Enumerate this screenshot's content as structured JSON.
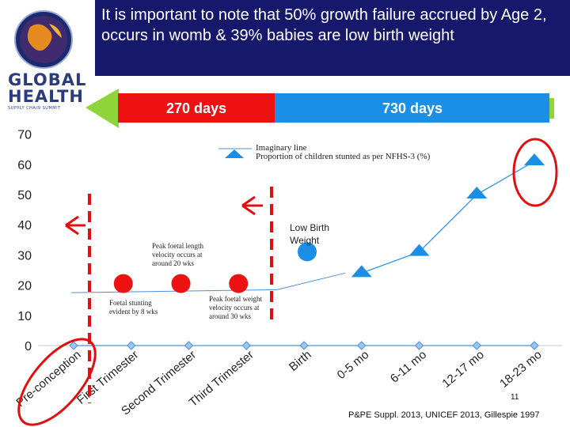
{
  "slide": {
    "title": "It is important to note that 50% growth failure accrued by Age 2, occurs in womb & 39% babies are low birth weight",
    "page_number": "11",
    "footnote": "P&PE Suppl. 2013, UNICEF 2013, Gillespie 1997"
  },
  "logo": {
    "line1": "GLOBAL",
    "line2": "HEALTH",
    "line3": "SUPPLY CHAIN SUMMIT"
  },
  "timeline": {
    "label_270": "270 days",
    "label_730": "730 days",
    "colors": {
      "red": "#ee1111",
      "blue": "#1b8ee6",
      "green": "#8ed43a"
    }
  },
  "chart_data": {
    "type": "line",
    "categories": [
      "Pre-conception",
      "First Trimester",
      "Second Trimester",
      "Third Trimester",
      "Birth",
      "0-5 mo",
      "6-11 mo",
      "12-17 mo",
      "18-23 mo"
    ],
    "ylim": [
      0,
      70
    ],
    "yticks": [
      0,
      10,
      20,
      30,
      40,
      50,
      60,
      70
    ],
    "grid": false,
    "legend_position": "top-right",
    "series": [
      {
        "name": "Imaginary line",
        "marker": "diamond",
        "color": "#4a90d9",
        "values": [
          0,
          0,
          0,
          0,
          0,
          0,
          0,
          0,
          0
        ]
      },
      {
        "name": "Proportion of children stunted as per NFHS-3 (%)",
        "marker": "triangle",
        "color": "#1b8ee6",
        "values": [
          null,
          null,
          null,
          null,
          null,
          24,
          31,
          50,
          61
        ]
      }
    ],
    "markers": [
      {
        "type": "red-dot",
        "category": "First Trimester",
        "y": 20
      },
      {
        "type": "red-dot",
        "category": "Second Trimester",
        "y": 20
      },
      {
        "type": "red-dot",
        "category": "Third Trimester",
        "y": 20
      },
      {
        "type": "blue-dot",
        "category": "Birth",
        "y": 30,
        "label": "Low Birth Weight"
      }
    ],
    "annotations": [
      "Peak foetal length velocity occurs at around 20 wks",
      "Foetal stunting evident by 8 wks",
      "Peak foetal weight velocity occurs at around 30 wks"
    ]
  }
}
